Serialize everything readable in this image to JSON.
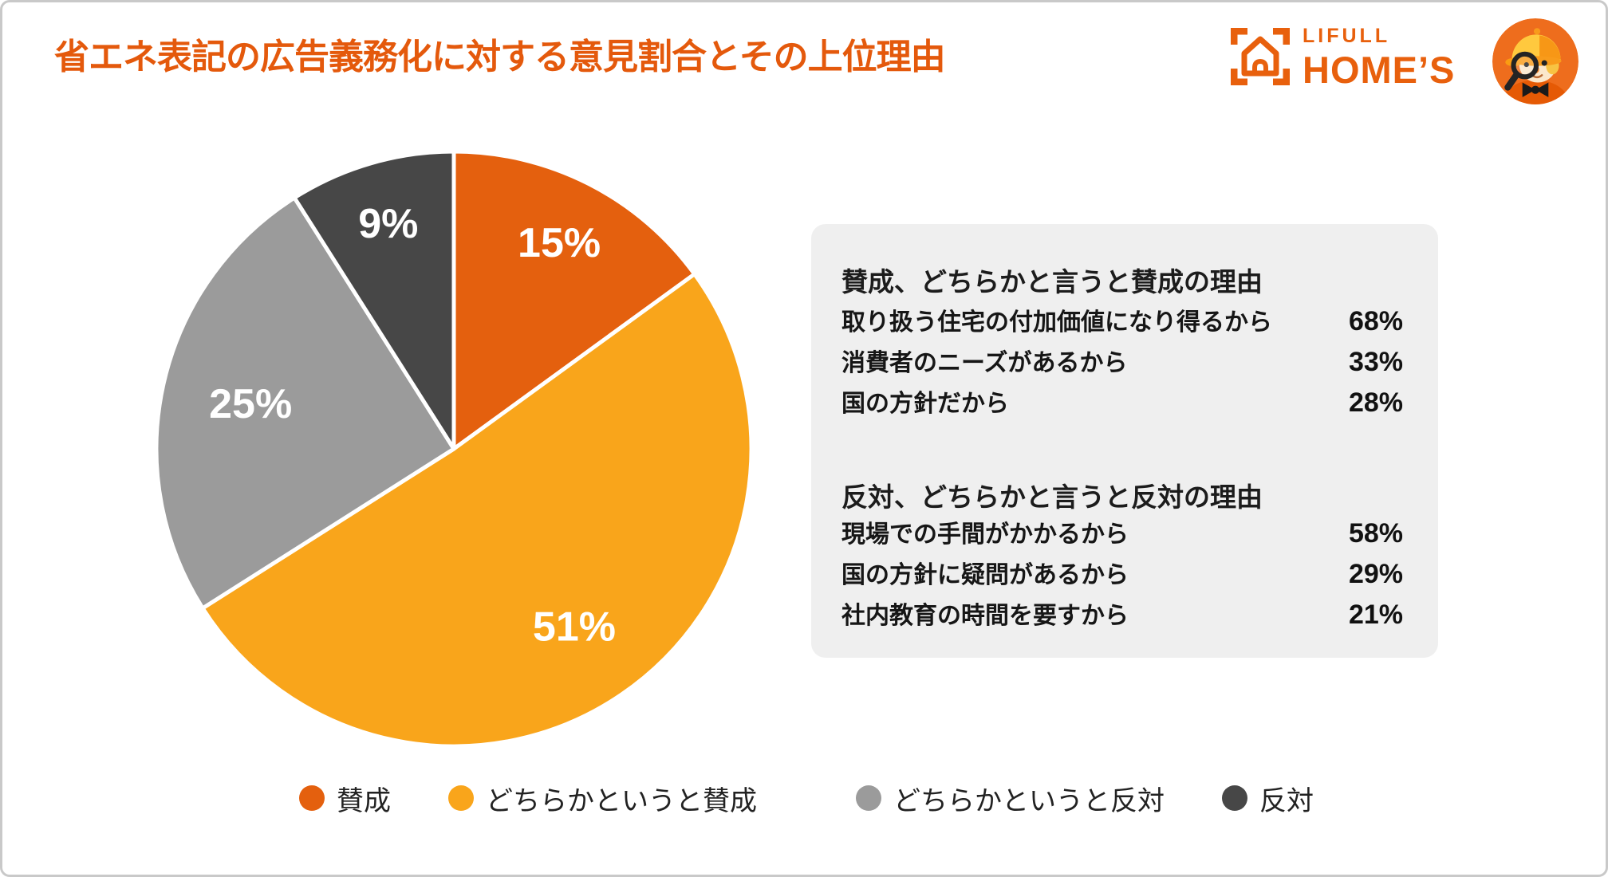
{
  "header": {
    "title": "省エネ表記の広告義務化に対する意見割合とその上位理由",
    "logo": {
      "brand_top": "LIFULL",
      "brand_bottom": "HOME’S"
    }
  },
  "chart_data": {
    "type": "pie",
    "title": "省エネ表記の広告義務化に対する意見割合",
    "direction": "clockwise",
    "start_angle_deg": 0,
    "value_suffix": "%",
    "separator_color": "#FFFFFF",
    "label_color": "#FFFFFF",
    "slices": [
      {
        "label": "賛成",
        "value": 15,
        "color": "#E4600E",
        "label_r": 0.78
      },
      {
        "label": "どちらかというと賛成",
        "value": 51,
        "color": "#F9A51B",
        "label_r": 0.72
      },
      {
        "label": "どちらかというと反対",
        "value": 25,
        "color": "#9B9B9B",
        "label_r": 0.7
      },
      {
        "label": "反対",
        "value": 9,
        "color": "#474747",
        "label_r": 0.79
      }
    ]
  },
  "panel": {
    "sections": [
      {
        "heading": "賛成、どちらかと言うと賛成の理由",
        "rows": [
          {
            "label": "取り扱う住宅の付加価値になり得るから",
            "value": "68%"
          },
          {
            "label": "消費者のニーズがあるから",
            "value": "33%"
          },
          {
            "label": "国の方針だから",
            "value": "28%"
          }
        ]
      },
      {
        "heading": "反対、どちらかと言うと反対の理由",
        "rows": [
          {
            "label": "現場での手間がかかるから",
            "value": "58%"
          },
          {
            "label": "国の方針に疑問があるから",
            "value": "29%"
          },
          {
            "label": "社内教育の時間を要すから",
            "value": "21%"
          }
        ]
      }
    ]
  },
  "legend": {
    "items": [
      {
        "label": "賛成",
        "color": "#E4600E"
      },
      {
        "label": "どちらかというと賛成",
        "color": "#F9A51B"
      },
      {
        "label": "どちらかというと反対",
        "color": "#9B9B9B"
      },
      {
        "label": "反対",
        "color": "#474747"
      }
    ]
  },
  "colors": {
    "title": "#E4590C",
    "brand": "#E8600D",
    "panel_bg": "#EFEFEF",
    "canvas_border": "#C9C9C9",
    "text": "#1C1C1C"
  }
}
